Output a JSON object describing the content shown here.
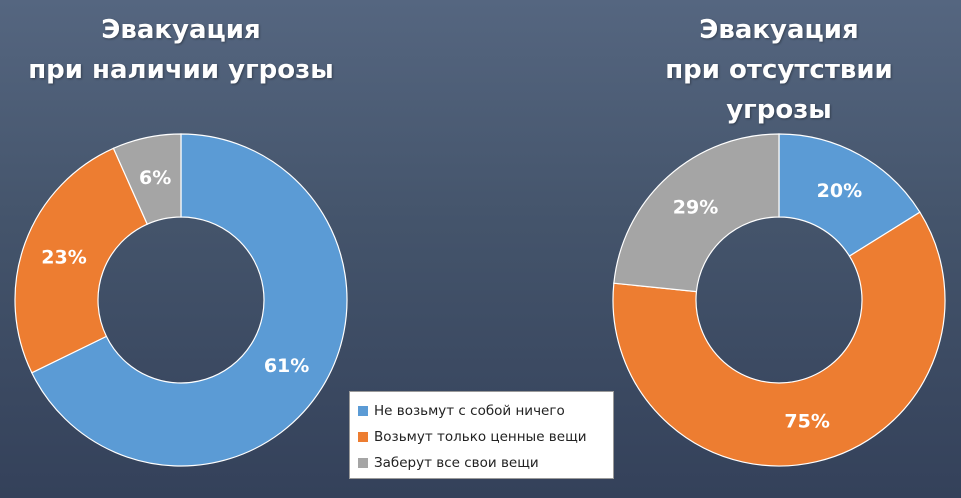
{
  "chart_data": [
    {
      "type": "donut",
      "title": [
        "Эвакуация",
        "при наличии угрозы"
      ],
      "series": [
        {
          "name": "Не возьмут с собой ничего",
          "value": 61,
          "label": "61%"
        },
        {
          "name": "Возьмут только ценные вещи",
          "value": 23,
          "label": "23%"
        },
        {
          "name": "Заберут все свои вещи",
          "value": 6,
          "label": "6%"
        }
      ]
    },
    {
      "type": "donut",
      "title": [
        "Эвакуация",
        "при отсутствии угрозы"
      ],
      "series": [
        {
          "name": "Не возьмут с собой ничего",
          "value": 20,
          "label": "20%"
        },
        {
          "name": "Возьмут только ценные вещи",
          "value": 75,
          "label": "75%"
        },
        {
          "name": "Заберут все свои вещи",
          "value": 29,
          "label": "29%"
        }
      ]
    }
  ],
  "legend": {
    "placement": "bottom-center",
    "items": [
      {
        "label": "Не возьмут с собой ничего",
        "color": "#5b9bd5"
      },
      {
        "label": "Возьмут только ценные вещи",
        "color": "#ed7d31"
      },
      {
        "label": "Заберут все свои вещи",
        "color": "#a5a5a5"
      }
    ]
  },
  "colors": {
    "series": [
      "#5b9bd5",
      "#ed7d31",
      "#a5a5a5"
    ]
  }
}
